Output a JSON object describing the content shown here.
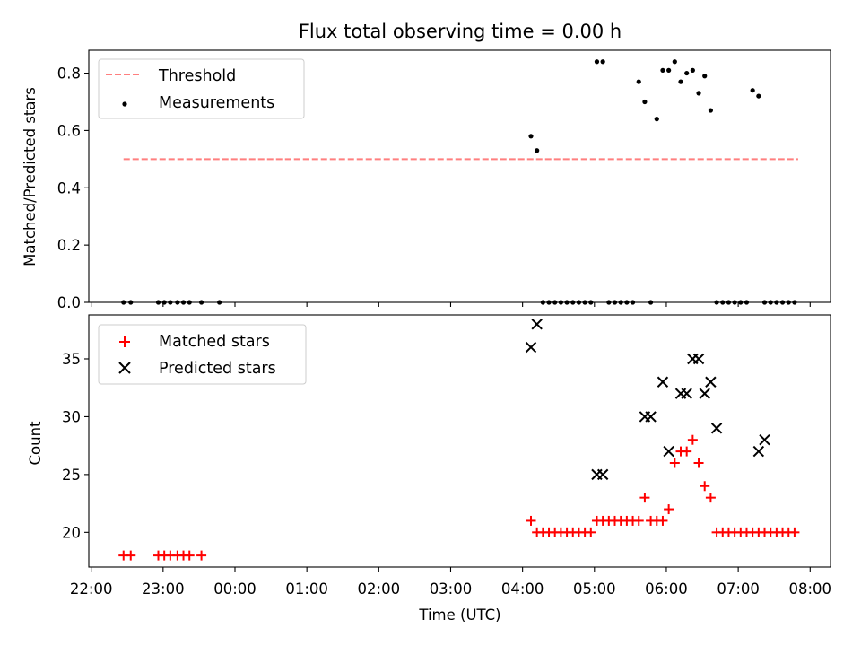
{
  "chart_data": [
    {
      "type": "scatter",
      "title": "Flux total observing time = 0.00 h",
      "ylabel": "Matched/Predicted stars",
      "xlabel": "",
      "ylim": [
        0,
        0.88
      ],
      "xlim": [
        "21:58",
        "08:17"
      ],
      "y_ticks": [
        "0.0",
        "0.2",
        "0.4",
        "0.6",
        "0.8"
      ],
      "y_tick_values": [
        0.0,
        0.2,
        0.4,
        0.6,
        0.8
      ],
      "legend_position": "top-left",
      "series": [
        {
          "name": "Threshold",
          "style": "dashed-line",
          "color": "#ff7f7f",
          "x": [
            "22:27",
            "07:50"
          ],
          "y": [
            0.5,
            0.5
          ]
        },
        {
          "name": "Measurements",
          "style": "dot",
          "color": "#000000",
          "x": [
            "22:27",
            "22:33",
            "22:56",
            "23:01",
            "23:06",
            "23:12",
            "23:17",
            "23:22",
            "23:32",
            "23:47",
            "04:07",
            "04:12",
            "04:17",
            "04:22",
            "04:27",
            "04:32",
            "04:37",
            "04:42",
            "04:47",
            "04:52",
            "04:57",
            "05:02",
            "05:07",
            "05:12",
            "05:17",
            "05:22",
            "05:27",
            "05:32",
            "05:37",
            "05:42",
            "05:47",
            "05:52",
            "05:57",
            "06:02",
            "06:07",
            "06:12",
            "06:17",
            "06:22",
            "06:27",
            "06:32",
            "06:37",
            "06:42",
            "06:47",
            "06:52",
            "06:57",
            "07:02",
            "07:07",
            "07:12",
            "07:17",
            "07:22",
            "07:27",
            "07:32",
            "07:37",
            "07:42",
            "07:47"
          ],
          "y": [
            0,
            0,
            0,
            0,
            0,
            0,
            0,
            0,
            0,
            0,
            0.58,
            0.53,
            0,
            0,
            0,
            0,
            0,
            0,
            0,
            0,
            0,
            0.84,
            0.84,
            0,
            0,
            0,
            0,
            0,
            0.77,
            0.7,
            0,
            0.64,
            0.81,
            0.81,
            0.84,
            0.77,
            0.8,
            0.81,
            0.73,
            0.79,
            0.67,
            0,
            0,
            0,
            0,
            0,
            0,
            0.74,
            0.72,
            0,
            0,
            0,
            0,
            0,
            0
          ]
        }
      ]
    },
    {
      "type": "scatter",
      "title": "",
      "ylabel": "Count",
      "xlabel": "Time (UTC)",
      "ylim": [
        17,
        38.8
      ],
      "xlim": [
        "21:58",
        "08:17"
      ],
      "y_ticks": [
        "20",
        "25",
        "30",
        "35"
      ],
      "y_tick_values": [
        20,
        25,
        30,
        35
      ],
      "x_ticks": [
        "22:00",
        "23:00",
        "00:00",
        "01:00",
        "02:00",
        "03:00",
        "04:00",
        "05:00",
        "06:00",
        "07:00",
        "08:00"
      ],
      "legend_position": "top-left",
      "series": [
        {
          "name": "Matched stars",
          "style": "plus",
          "color": "#ff0000",
          "x": [
            "22:27",
            "22:33",
            "22:56",
            "23:01",
            "23:06",
            "23:12",
            "23:17",
            "23:22",
            "23:32",
            "04:07",
            "04:12",
            "04:17",
            "04:22",
            "04:27",
            "04:32",
            "04:37",
            "04:42",
            "04:47",
            "04:52",
            "04:57",
            "05:02",
            "05:07",
            "05:12",
            "05:17",
            "05:22",
            "05:27",
            "05:32",
            "05:37",
            "05:42",
            "05:47",
            "05:52",
            "05:57",
            "06:02",
            "06:07",
            "06:12",
            "06:17",
            "06:22",
            "06:27",
            "06:32",
            "06:37",
            "06:42",
            "06:47",
            "06:52",
            "06:57",
            "07:02",
            "07:07",
            "07:12",
            "07:17",
            "07:22",
            "07:27",
            "07:32",
            "07:37",
            "07:42",
            "07:47"
          ],
          "y": [
            18,
            18,
            18,
            18,
            18,
            18,
            18,
            18,
            18,
            21,
            20,
            20,
            20,
            20,
            20,
            20,
            20,
            20,
            20,
            20,
            21,
            21,
            21,
            21,
            21,
            21,
            21,
            21,
            23,
            21,
            21,
            21,
            22,
            26,
            27,
            27,
            28,
            26,
            24,
            23,
            20,
            20,
            20,
            20,
            20,
            20,
            20,
            20,
            20,
            20,
            20,
            20,
            20,
            20
          ]
        },
        {
          "name": "Predicted stars",
          "style": "x",
          "color": "#000000",
          "x": [
            "04:07",
            "04:12",
            "05:02",
            "05:07",
            "05:42",
            "05:47",
            "05:57",
            "06:02",
            "06:12",
            "06:17",
            "06:22",
            "06:27",
            "06:32",
            "06:37",
            "06:42",
            "07:17",
            "07:22"
          ],
          "y": [
            36,
            38,
            25,
            25,
            30,
            30,
            33,
            27,
            32,
            32,
            35,
            35,
            32,
            33,
            29,
            27,
            28
          ]
        }
      ]
    }
  ]
}
